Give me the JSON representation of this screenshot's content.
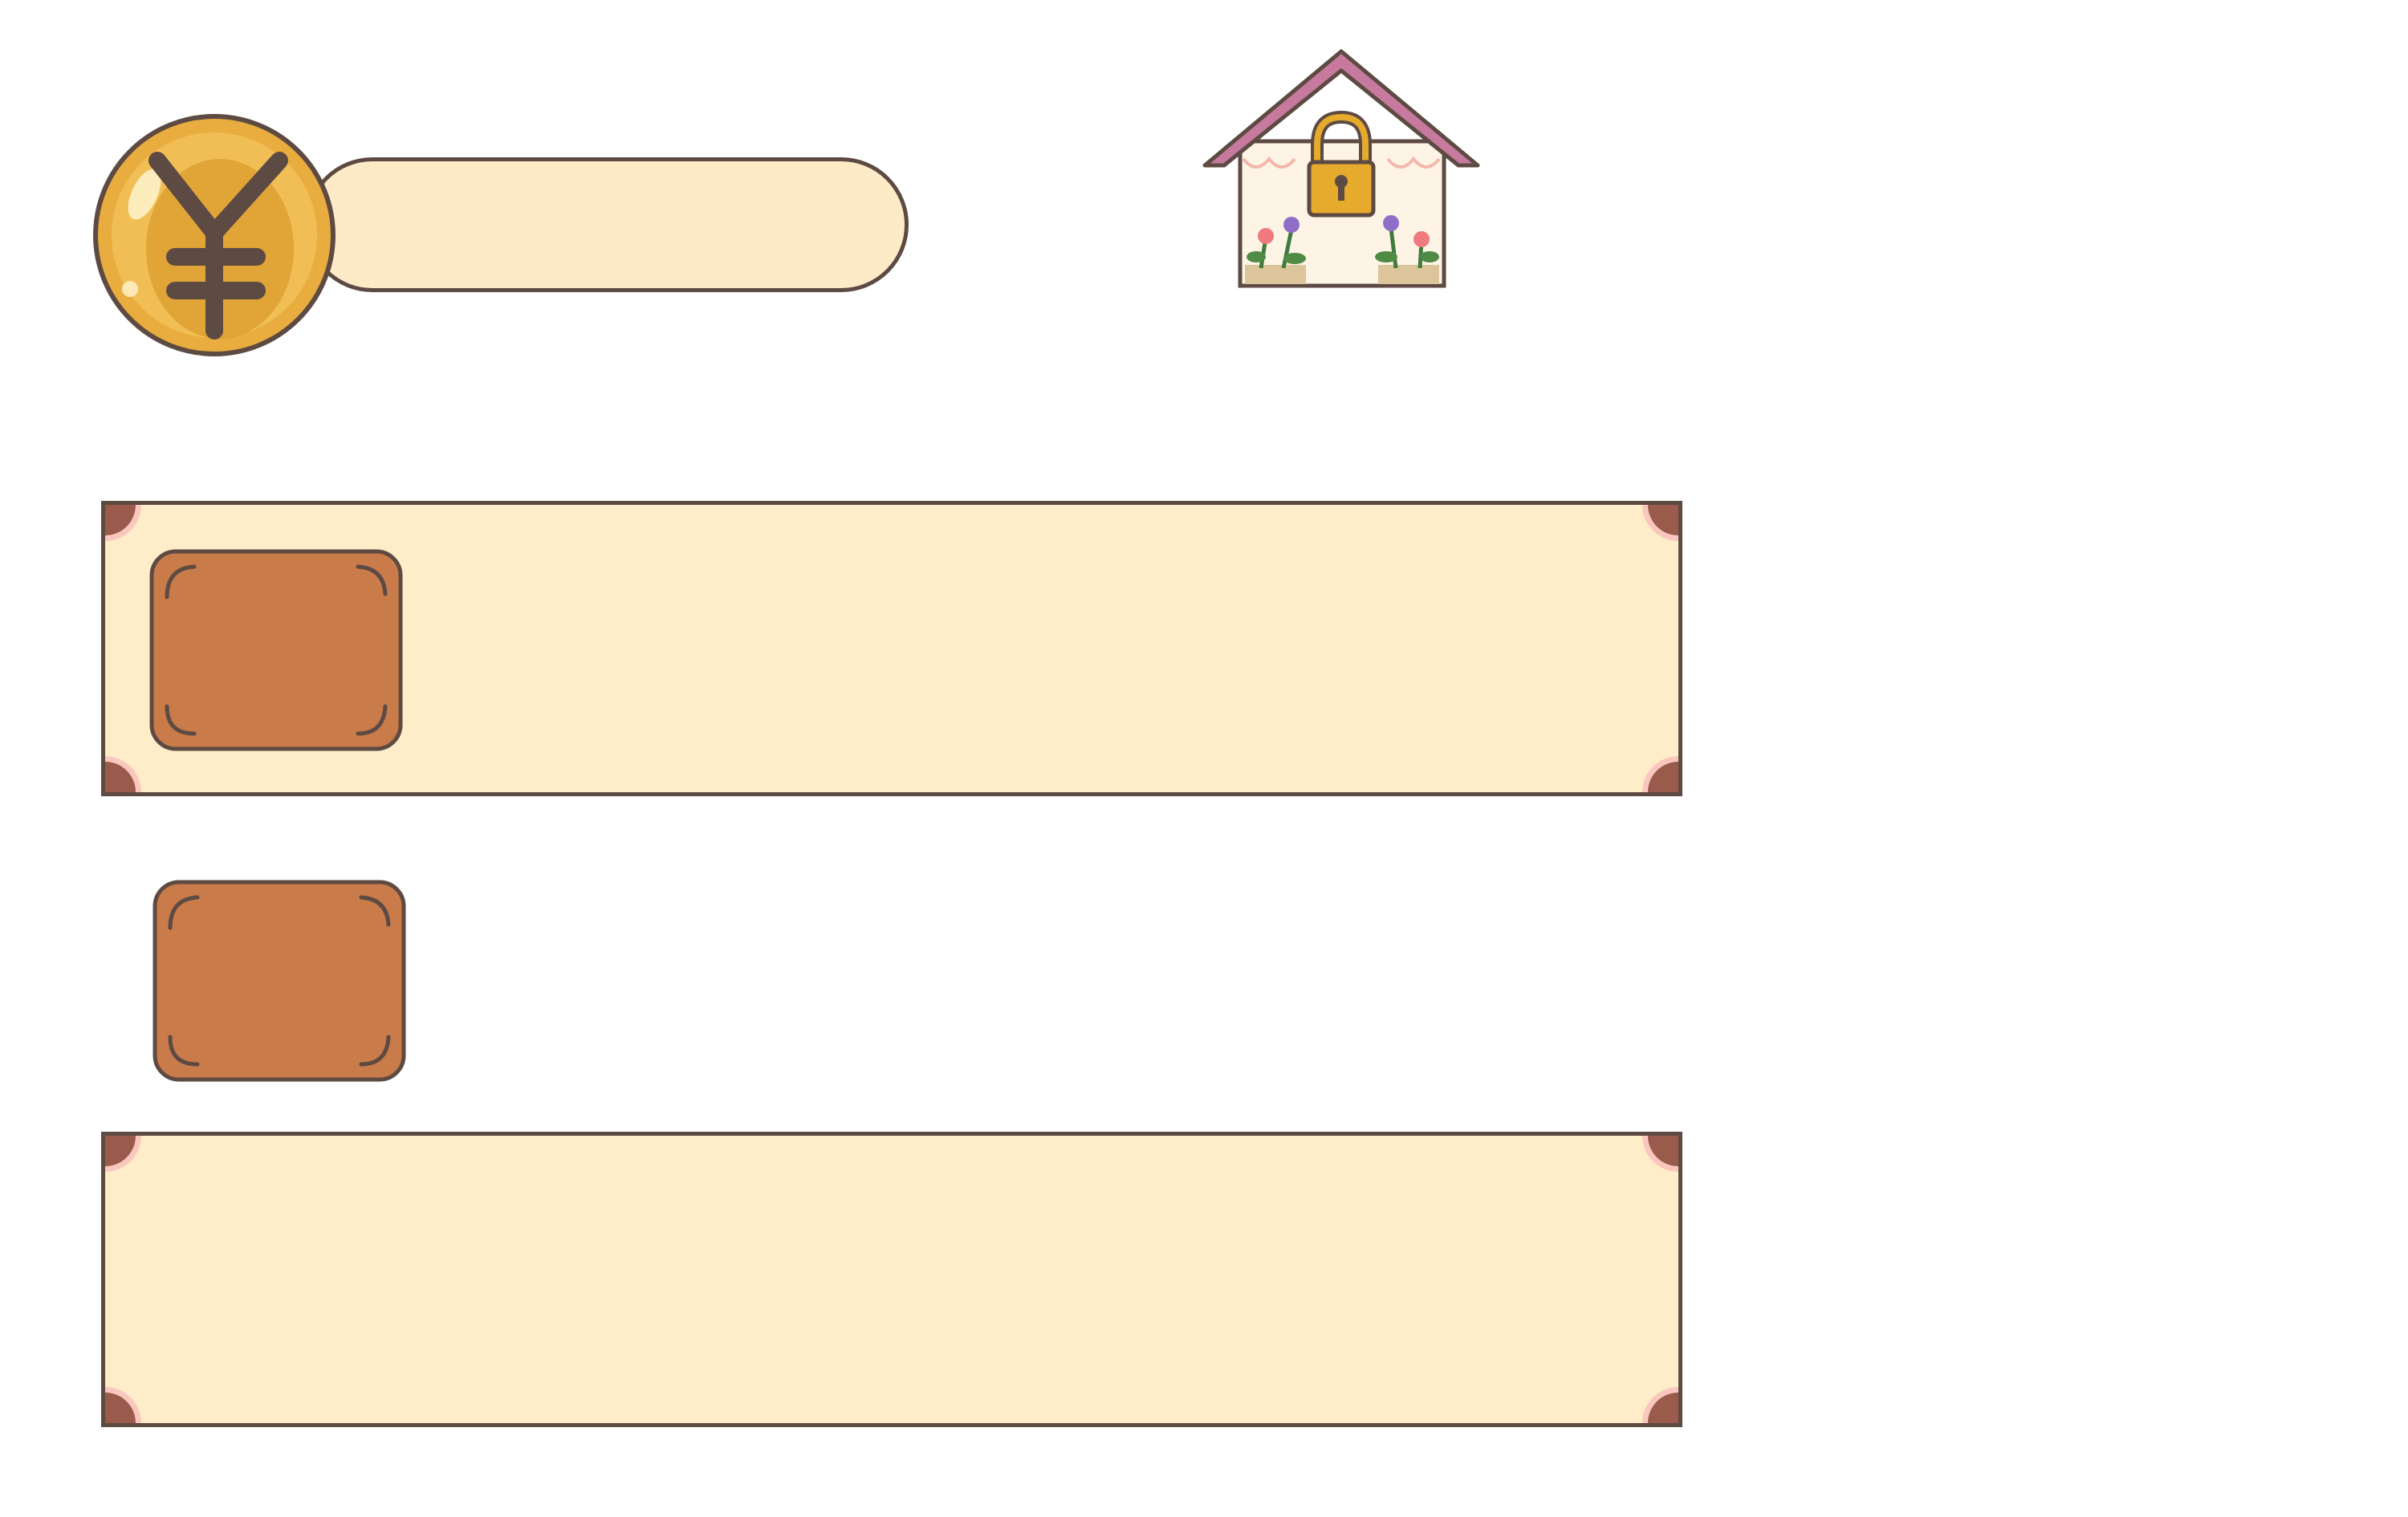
{
  "currency": {
    "icon": "yen-coin-icon",
    "amount": ""
  },
  "shop": {
    "icon": "locked-house-icon"
  },
  "item_panels": [
    {
      "label": ""
    },
    {
      "label": ""
    }
  ],
  "slots": [
    {
      "icon": "item-slot-icon"
    },
    {
      "icon": "item-slot-icon"
    }
  ],
  "colors": {
    "panel_fill": "#feedc8",
    "outline": "#5d4a43",
    "slot_fill": "#c97b49",
    "coin_gold": "#e5a93a",
    "roof_pink": "#c77a9e",
    "corner_brown": "#9a5a4c"
  }
}
